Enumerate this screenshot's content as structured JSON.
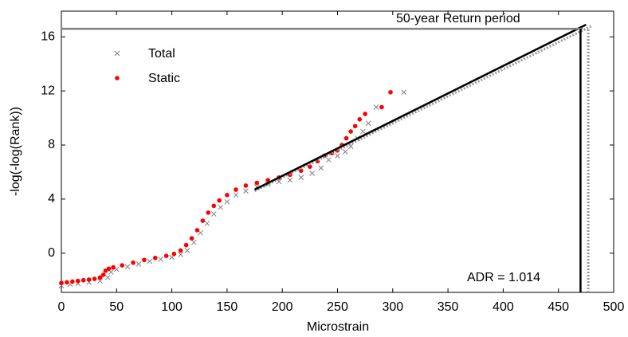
{
  "chart_data": {
    "type": "scatter",
    "xlabel": "Microstrain",
    "ylabel": "-log(-log(Rank))",
    "xlim": [
      0,
      500
    ],
    "ylim": [
      -2.9,
      17.9
    ],
    "xticks": [
      0,
      50,
      100,
      150,
      200,
      250,
      300,
      350,
      400,
      450,
      500
    ],
    "yticks": [
      0,
      4,
      8,
      12,
      16
    ],
    "legend": "upper left",
    "series": [
      {
        "name": "Total",
        "color": "#808080",
        "marker": "x",
        "x": [
          0,
          8,
          15,
          25,
          35,
          42,
          45,
          50,
          60,
          70,
          80,
          90,
          100,
          108,
          114,
          120,
          126,
          132,
          138,
          144,
          150,
          158,
          167,
          177,
          187,
          197,
          207,
          217,
          227,
          235,
          242,
          250,
          257,
          262,
          268,
          273,
          278,
          285,
          310
        ],
        "values": [
          -2.4,
          -2.3,
          -2.25,
          -2.15,
          -2.05,
          -1.8,
          -1.4,
          -1.2,
          -1.0,
          -0.8,
          -0.6,
          -0.45,
          -0.3,
          -0.1,
          0.2,
          0.8,
          1.5,
          2.2,
          2.9,
          3.4,
          3.8,
          4.3,
          4.6,
          4.9,
          5.1,
          5.3,
          5.4,
          5.6,
          5.9,
          6.3,
          6.9,
          7.2,
          7.5,
          7.9,
          8.5,
          9.0,
          9.6,
          10.8,
          11.9
        ]
      },
      {
        "name": "Static",
        "color": "#ff0000",
        "marker": "o",
        "x": [
          0,
          5,
          10,
          15,
          20,
          25,
          30,
          35,
          38,
          40,
          43,
          47,
          55,
          65,
          75,
          85,
          95,
          102,
          108,
          113,
          118,
          123,
          128,
          133,
          138,
          143,
          150,
          158,
          167,
          177,
          187,
          197,
          207,
          217,
          225,
          232,
          238,
          245,
          250,
          254,
          258,
          262,
          266,
          270,
          275,
          290,
          298
        ],
        "values": [
          -2.2,
          -2.15,
          -2.1,
          -2.05,
          -2.0,
          -1.95,
          -1.9,
          -1.8,
          -1.6,
          -1.3,
          -1.15,
          -1.05,
          -0.9,
          -0.7,
          -0.5,
          -0.35,
          -0.2,
          -0.05,
          0.2,
          0.6,
          1.1,
          1.7,
          2.4,
          3.0,
          3.5,
          3.9,
          4.3,
          4.7,
          5.0,
          5.2,
          5.4,
          5.6,
          5.8,
          6.1,
          6.4,
          6.8,
          7.2,
          7.4,
          7.6,
          8.0,
          8.5,
          9.0,
          9.4,
          9.9,
          10.3,
          10.8,
          11.9
        ]
      }
    ],
    "lines": [
      {
        "color": "#999999",
        "dash": true,
        "x": [
          175,
          480
        ],
        "y": [
          4.6,
          16.8
        ]
      },
      {
        "color": "#000000",
        "dash": false,
        "x": [
          175,
          475
        ],
        "y": [
          4.7,
          16.9
        ]
      },
      {
        "color": "#808080",
        "dash": false,
        "x": [
          0,
          472
        ],
        "y": [
          16.6,
          16.6
        ]
      },
      {
        "color": "#000000",
        "dash": false,
        "x": [
          470,
          470
        ],
        "y": [
          -2.9,
          16.6
        ]
      },
      {
        "color": "#999999",
        "dash": true,
        "x": [
          477,
          477
        ],
        "y": [
          -2.9,
          16.6
        ]
      }
    ],
    "annotations": [
      "50-year Return period",
      "ADR = 1.014"
    ]
  }
}
